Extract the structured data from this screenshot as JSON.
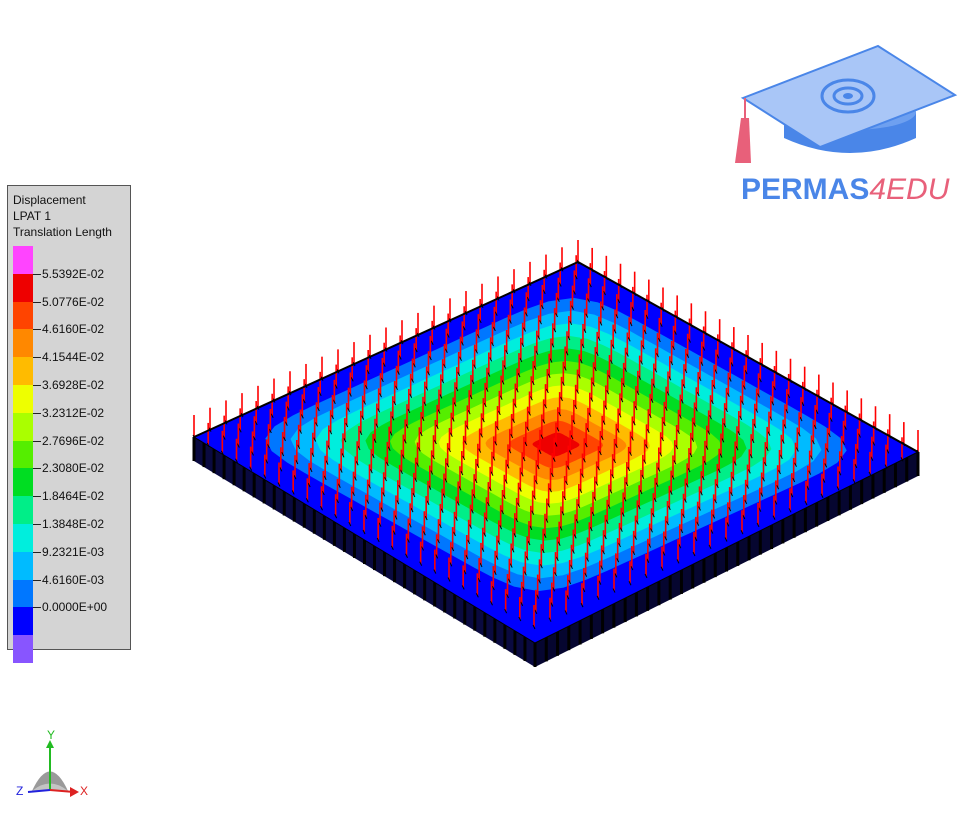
{
  "legend": {
    "title_lines": [
      "Displacement",
      "LPAT 1",
      "Translation Length"
    ],
    "levels": [
      {
        "color": "#ff44ff"
      },
      {
        "color": "#ee0000",
        "label": "5.5392E-02"
      },
      {
        "color": "#ff4400",
        "label": "5.0776E-02"
      },
      {
        "color": "#ff8800",
        "label": "4.6160E-02"
      },
      {
        "color": "#ffbb00",
        "label": "4.1544E-02"
      },
      {
        "color": "#eeff00",
        "label": "3.6928E-02"
      },
      {
        "color": "#aaff00",
        "label": "3.2312E-02"
      },
      {
        "color": "#55ee00",
        "label": "2.7696E-02"
      },
      {
        "color": "#00dd22",
        "label": "2.3080E-02"
      },
      {
        "color": "#00ee88",
        "label": "1.8464E-02"
      },
      {
        "color": "#00eedd",
        "label": "1.3848E-02"
      },
      {
        "color": "#00bbff",
        "label": "9.2321E-03"
      },
      {
        "color": "#0077ff",
        "label": "4.6160E-03"
      },
      {
        "color": "#0000ff",
        "label": "0.0000E+00"
      },
      {
        "color": "#8855ff"
      }
    ]
  },
  "brand": {
    "part1": "PERMAS",
    "part2": "4EDU",
    "color1": "#4a86e8",
    "color2": "#e8607a"
  },
  "triad": {
    "y_label": "Y",
    "z_label": "Z",
    "x_label": "X",
    "y_color": "#22bb22",
    "z_color": "#2222dd",
    "x_color": "#dd2222"
  },
  "model": {
    "plate_color": "#0000ff",
    "arrow_color": "#ff0000",
    "contour_colors": [
      "#0000ff",
      "#0077ff",
      "#00bbff",
      "#00eedd",
      "#00ee88",
      "#00dd22",
      "#55ee00",
      "#aaff00",
      "#eeff00",
      "#ffbb00",
      "#ff8800",
      "#ff4400",
      "#ee0000"
    ]
  }
}
